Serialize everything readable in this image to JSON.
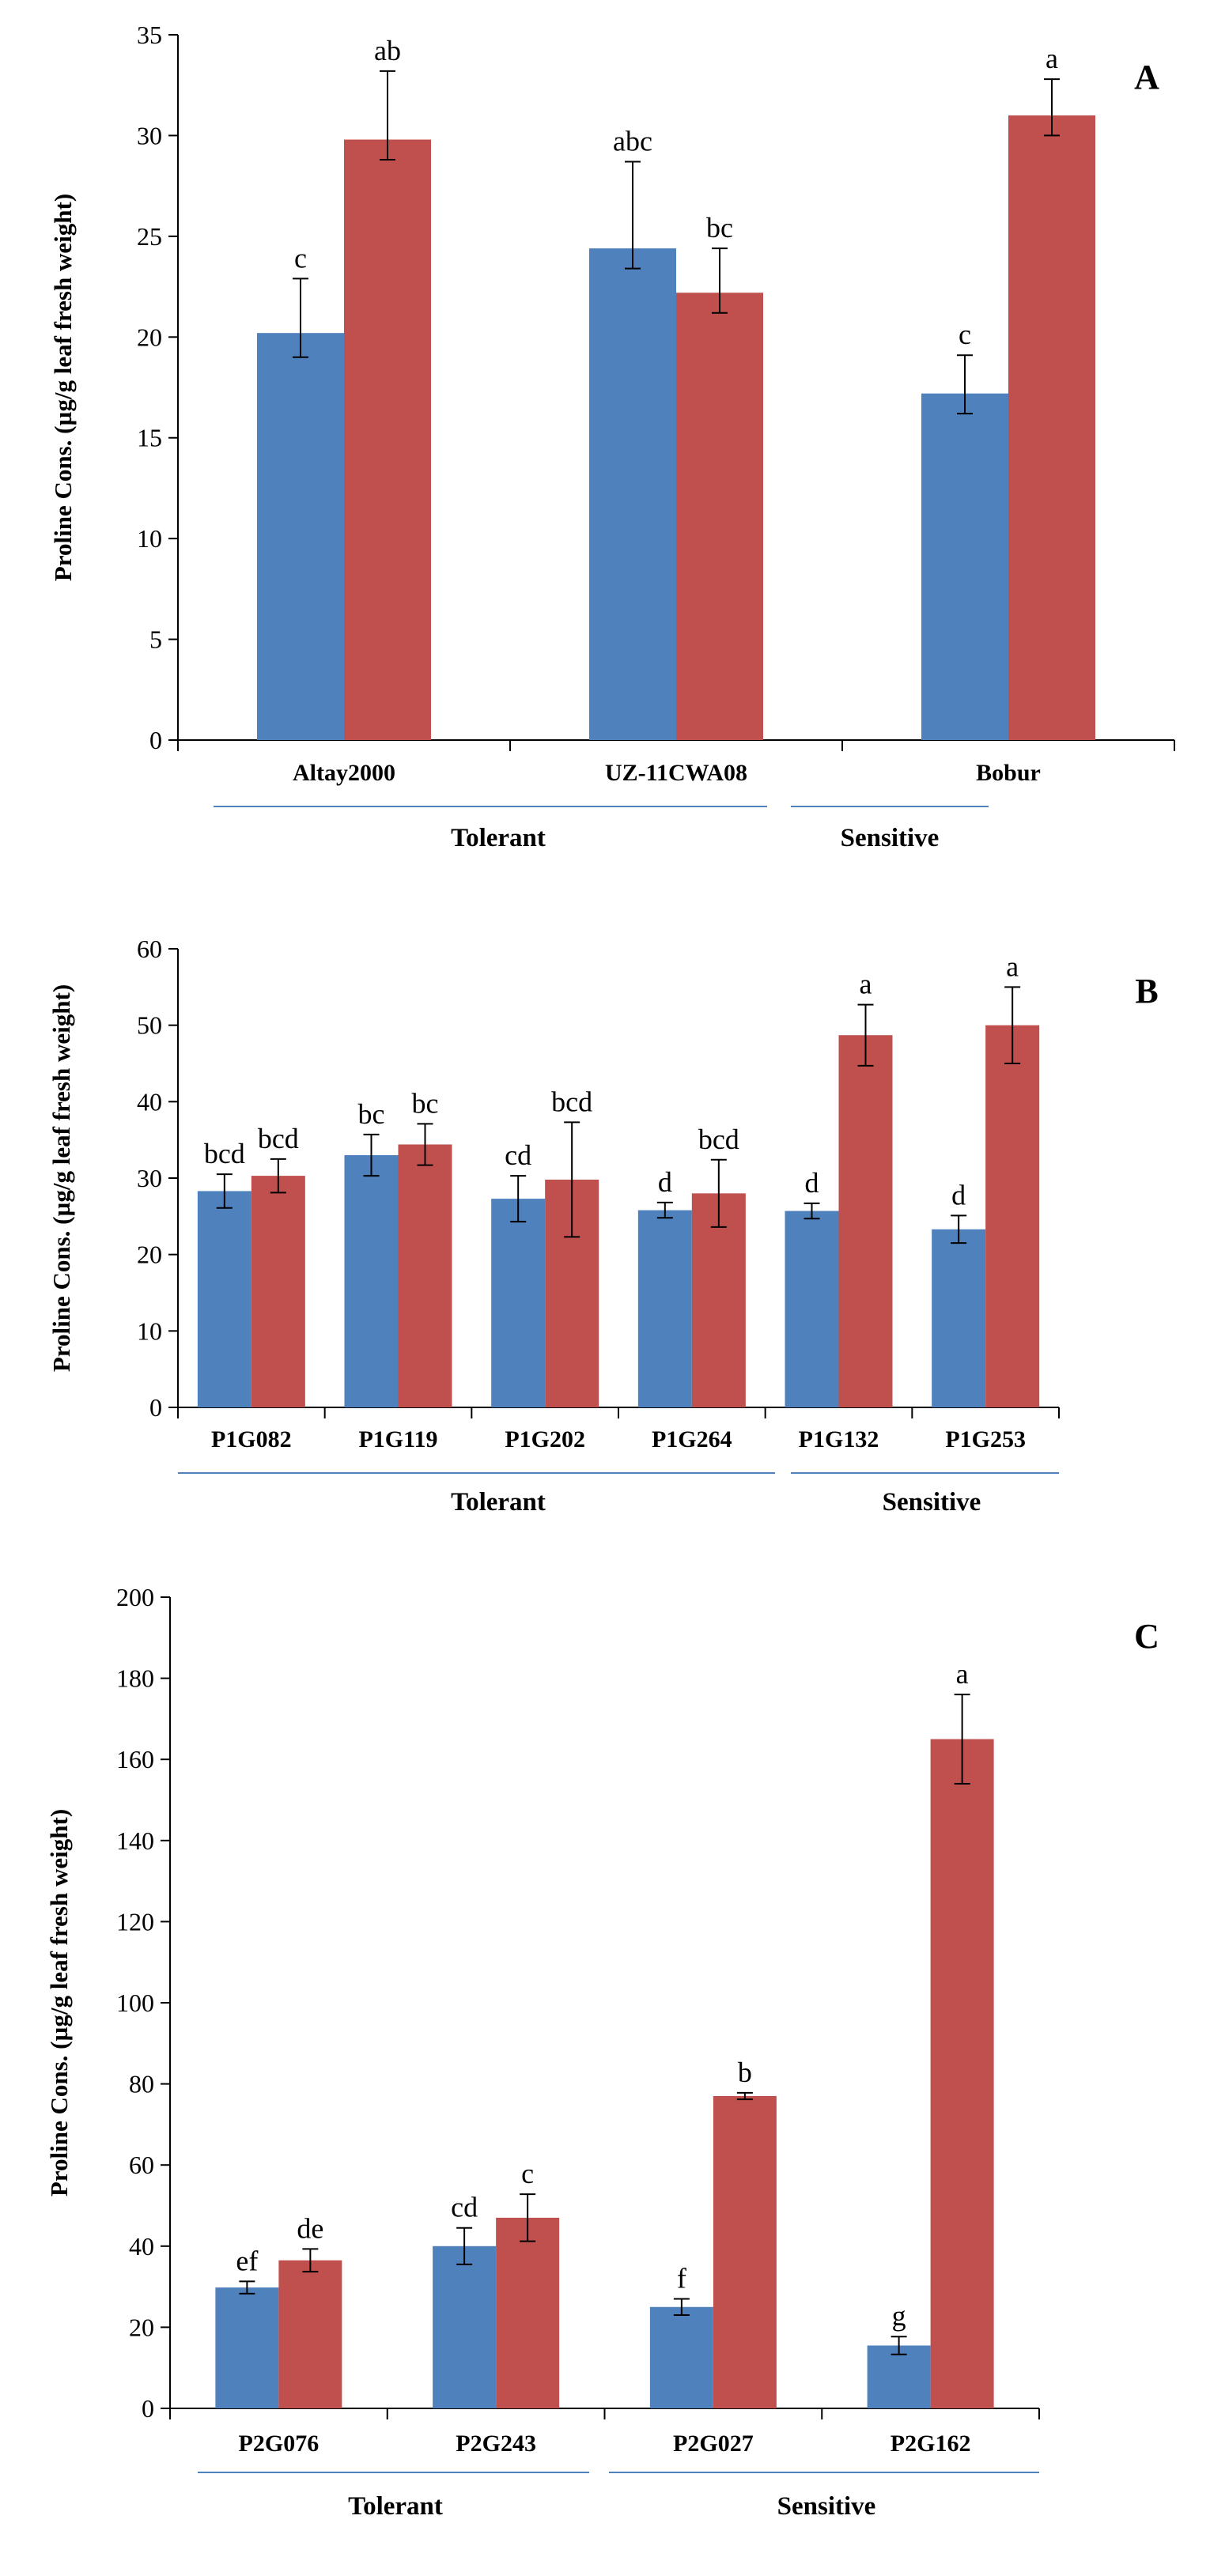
{
  "colors": {
    "series1": "#4F81BD",
    "series2": "#C0504D",
    "axis": "#000000",
    "group_line": "#4F81BD"
  },
  "chart_data": [
    {
      "type": "bar",
      "panel_label": "A",
      "ylabel": "Proline Cons. (µg/g leaf fresh weight)",
      "ylim": [
        0,
        35
      ],
      "yticks": [
        0,
        5,
        10,
        15,
        20,
        25,
        30,
        35
      ],
      "categories": [
        "Altay2000",
        "UZ-11CWA08",
        "Bobur"
      ],
      "series": [
        {
          "values": [
            20.2,
            24.4,
            17.2
          ],
          "errors": [
            1.2,
            1.0,
            1.0
          ],
          "errors_up": [
            2.7,
            4.3,
            1.9
          ],
          "letters": [
            "c",
            "abc",
            "c"
          ]
        },
        {
          "values": [
            29.8,
            22.2,
            31.0
          ],
          "errors": [
            1.0,
            1.0,
            1.0
          ],
          "errors_up": [
            3.4,
            2.2,
            1.8
          ],
          "letters": [
            "ab",
            "bc",
            "a"
          ]
        }
      ],
      "groups": [
        {
          "label": "Tolerant",
          "span": [
            0,
            1
          ]
        },
        {
          "label": "Sensitive",
          "span": [
            2,
            2
          ]
        }
      ],
      "grid": false
    },
    {
      "type": "bar",
      "panel_label": "B",
      "ylabel": "Proline Cons. (µg/g leaf fresh weight)",
      "ylim": [
        0,
        60
      ],
      "yticks": [
        0,
        10,
        20,
        30,
        40,
        50,
        60
      ],
      "categories": [
        "P1G082",
        "P1G119",
        "P1G202",
        "P1G264",
        "P1G132",
        "P1G253"
      ],
      "series": [
        {
          "values": [
            28.3,
            33.0,
            27.3,
            25.8,
            25.7,
            23.3
          ],
          "errors": [
            2.2,
            2.7,
            3.0,
            1.0,
            1.0,
            1.8
          ],
          "letters": [
            "bcd",
            "bc",
            "cd",
            "d",
            "d",
            "d"
          ]
        },
        {
          "values": [
            30.3,
            34.4,
            29.8,
            28.0,
            48.7,
            50.0
          ],
          "errors": [
            2.2,
            2.7,
            7.5,
            4.4,
            4.0,
            5.0
          ],
          "letters": [
            "bcd",
            "bc",
            "bcd",
            "bcd",
            "a",
            "a"
          ]
        }
      ],
      "groups": [
        {
          "label": "Tolerant",
          "span": [
            0,
            3
          ]
        },
        {
          "label": "Sensitive",
          "span": [
            4,
            5
          ]
        }
      ],
      "grid": false
    },
    {
      "type": "bar",
      "panel_label": "C",
      "ylabel": "Proline Cons. (µg/g leaf fresh weight)",
      "ylim": [
        0,
        200
      ],
      "yticks": [
        0,
        20,
        40,
        60,
        80,
        100,
        120,
        140,
        160,
        180,
        200
      ],
      "categories": [
        "P2G076",
        "P2G243",
        "P2G027",
        "P2G162"
      ],
      "series": [
        {
          "values": [
            29.8,
            40.0,
            25.0,
            15.5
          ],
          "errors": [
            1.5,
            4.5,
            2.0,
            2.2
          ],
          "letters": [
            "ef",
            "cd",
            "f",
            "g"
          ]
        },
        {
          "values": [
            36.5,
            47.0,
            77.0,
            165.0
          ],
          "errors": [
            2.8,
            5.8,
            0.8,
            11.0
          ],
          "letters": [
            "de",
            "c",
            "b",
            "a"
          ]
        }
      ],
      "groups": [
        {
          "label": "Tolerant",
          "span": [
            0,
            1
          ]
        },
        {
          "label": "Sensitive",
          "span": [
            2,
            3
          ]
        }
      ],
      "grid": false
    }
  ]
}
